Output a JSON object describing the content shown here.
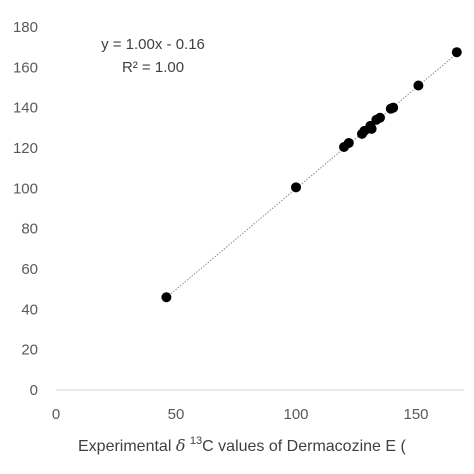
{
  "chart_data": {
    "type": "scatter",
    "title": "",
    "xlabel": {
      "prefix": "Experimental ",
      "delta": "δ",
      "superscript": "13",
      "suffix": "C values of Dermacozine E ("
    },
    "ylabel": "",
    "xlim": [
      0,
      170
    ],
    "ylim": [
      0,
      180
    ],
    "x_ticks": [
      0,
      50,
      100,
      150
    ],
    "y_ticks": [
      0,
      20,
      40,
      60,
      80,
      100,
      120,
      140,
      160,
      180
    ],
    "grid": false,
    "trendline": {
      "type": "linear",
      "slope": 1.0,
      "intercept": -0.16,
      "style": "dotted"
    },
    "annotations": {
      "equation": "y = 1.00x - 0.16",
      "r_squared": "R² = 1.00"
    },
    "points": [
      {
        "x": 46,
        "y": 46
      },
      {
        "x": 100,
        "y": 100.5
      },
      {
        "x": 120,
        "y": 120.5
      },
      {
        "x": 122,
        "y": 122.5
      },
      {
        "x": 127.5,
        "y": 127
      },
      {
        "x": 128.5,
        "y": 128.5
      },
      {
        "x": 131,
        "y": 131
      },
      {
        "x": 131.5,
        "y": 129.5
      },
      {
        "x": 133.5,
        "y": 134
      },
      {
        "x": 135,
        "y": 135
      },
      {
        "x": 139.5,
        "y": 139.5
      },
      {
        "x": 140.5,
        "y": 140
      },
      {
        "x": 151,
        "y": 151
      },
      {
        "x": 167,
        "y": 167.5
      }
    ],
    "colors": {
      "marker": "#000000",
      "axis": "#d9d9d9",
      "trendline": "#8c8c8c"
    }
  }
}
